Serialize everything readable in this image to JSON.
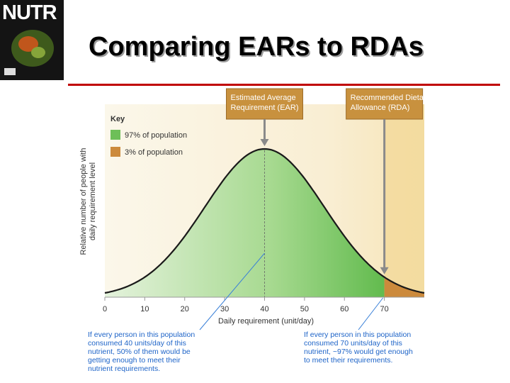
{
  "slide": {
    "title": "Comparing EARs to RDAs",
    "cover_brand": "NUTR",
    "accent_color": "#c00000"
  },
  "chart_data": {
    "type": "area",
    "title": "",
    "xlabel": "Daily requirement (unit/day)",
    "ylabel": [
      "Relative number of people with",
      "daily requirement level"
    ],
    "x_ticks": [
      0,
      10,
      20,
      30,
      40,
      50,
      60,
      70
    ],
    "xlim": [
      0,
      80
    ],
    "distribution": {
      "kind": "normal",
      "mean": 40,
      "sd": 15
    },
    "key": {
      "title": "Key",
      "items": [
        {
          "label": "97% of population",
          "color": "#6dbf58"
        },
        {
          "label": "3% of population",
          "color": "#cc8a3c"
        }
      ]
    },
    "markers": [
      {
        "x": 40,
        "label_lines": [
          "Estimated Average",
          "Requirement (EAR)"
        ],
        "box_color": "#c8913e"
      },
      {
        "x": 70,
        "label_lines": [
          "Recommended Dietary",
          "Allowance (RDA)"
        ],
        "box_color": "#c8913e"
      }
    ],
    "callouts": [
      {
        "x": 40,
        "lines": [
          "If every person in this population",
          "consumed 40 units/day of this",
          "nutrient, 50% of them would be",
          "getting enough to meet their",
          "nutrient requirements."
        ]
      },
      {
        "x": 70,
        "lines": [
          "If every person in this population",
          "consumed 70 units/day of this",
          "nutrient, ~97% would get enough",
          "to meet their requirements."
        ]
      }
    ]
  }
}
